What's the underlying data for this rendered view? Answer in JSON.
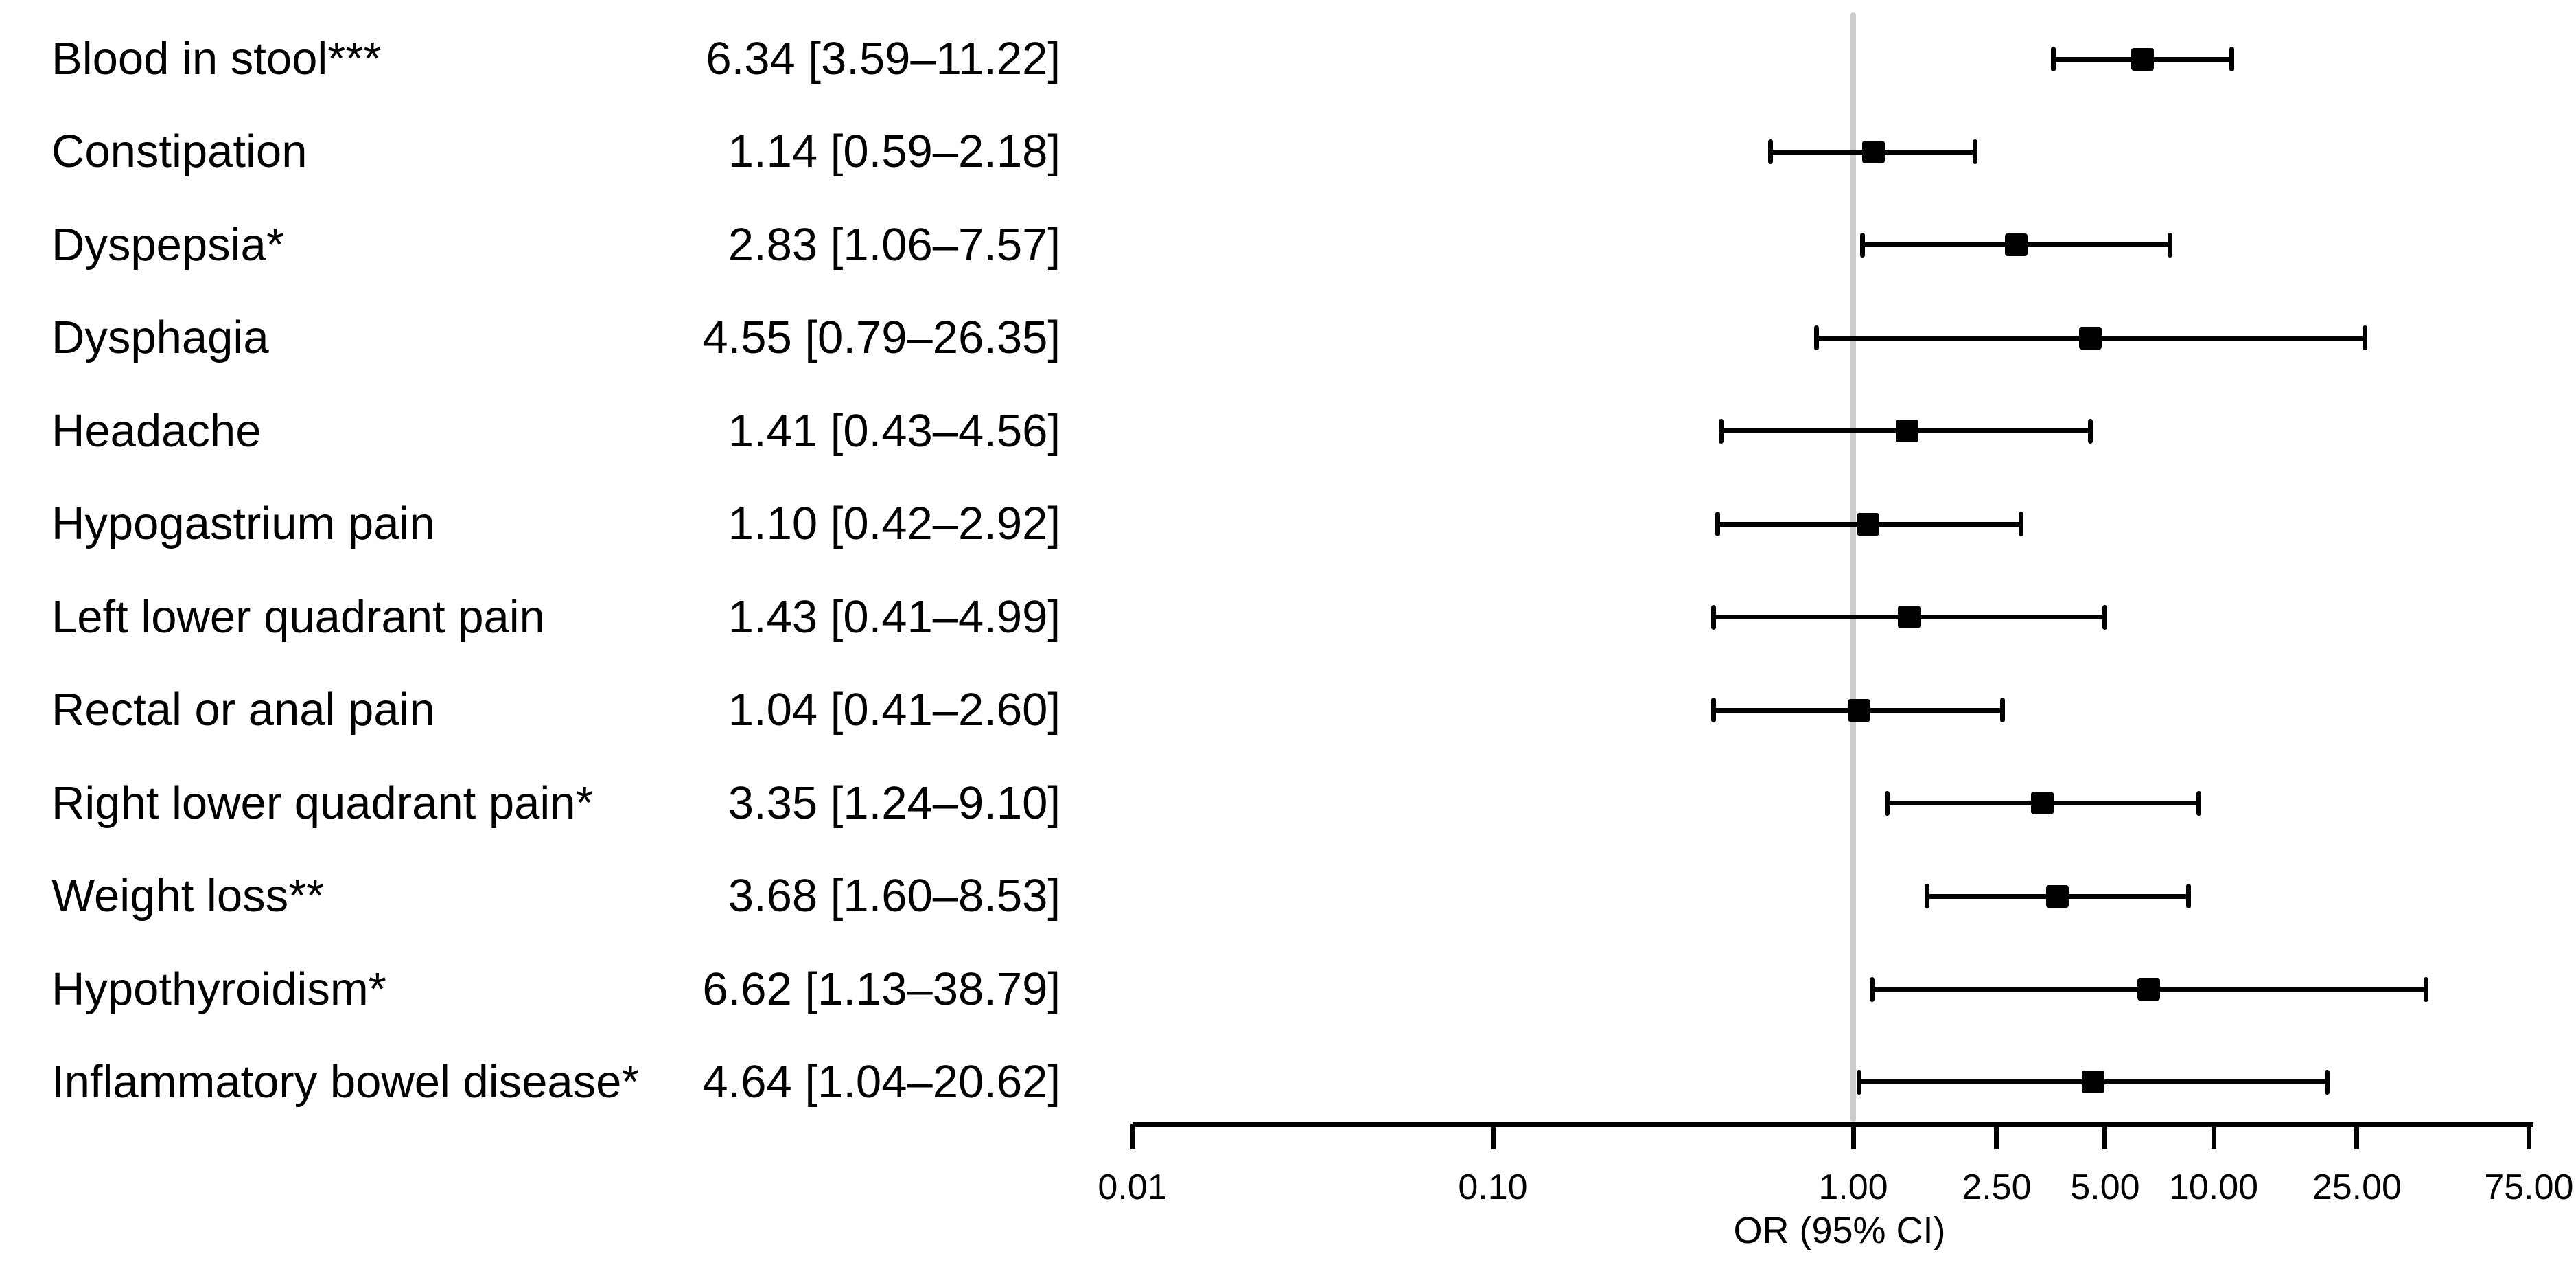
{
  "chart_data": {
    "type": "forest",
    "xlabel": "OR (95% CI)",
    "x_scale": "log10",
    "xlim": [
      0.01,
      75.0
    ],
    "reference_line": 1.0,
    "grid": false,
    "x_ticks": [
      0.01,
      0.1,
      1.0,
      2.5,
      5.0,
      10.0,
      25.0,
      75.0
    ],
    "x_tick_labels": [
      "0.01",
      "0.10",
      "1.00",
      "2.50",
      "5.00",
      "10.00",
      "25.00",
      "75.00"
    ],
    "rows": [
      {
        "label": "Blood in stool***",
        "estimate_text": "6.34 [3.59–11.22]",
        "or": 6.34,
        "ci_low": 3.59,
        "ci_high": 11.22
      },
      {
        "label": "Constipation",
        "estimate_text": "1.14 [0.59–2.18]",
        "or": 1.14,
        "ci_low": 0.59,
        "ci_high": 2.18
      },
      {
        "label": "Dyspepsia*",
        "estimate_text": "2.83 [1.06–7.57]",
        "or": 2.83,
        "ci_low": 1.06,
        "ci_high": 7.57
      },
      {
        "label": "Dysphagia",
        "estimate_text": "4.55 [0.79–26.35]",
        "or": 4.55,
        "ci_low": 0.79,
        "ci_high": 26.35
      },
      {
        "label": "Headache",
        "estimate_text": "1.41 [0.43–4.56]",
        "or": 1.41,
        "ci_low": 0.43,
        "ci_high": 4.56
      },
      {
        "label": "Hypogastrium pain",
        "estimate_text": "1.10 [0.42–2.92]",
        "or": 1.1,
        "ci_low": 0.42,
        "ci_high": 2.92
      },
      {
        "label": "Left lower quadrant pain",
        "estimate_text": "1.43 [0.41–4.99]",
        "or": 1.43,
        "ci_low": 0.41,
        "ci_high": 4.99
      },
      {
        "label": "Rectal or anal pain",
        "estimate_text": "1.04 [0.41–2.60]",
        "or": 1.04,
        "ci_low": 0.41,
        "ci_high": 2.6
      },
      {
        "label": "Right lower quadrant pain*",
        "estimate_text": "3.35 [1.24–9.10]",
        "or": 3.35,
        "ci_low": 1.24,
        "ci_high": 9.1
      },
      {
        "label": "Weight loss**",
        "estimate_text": "3.68 [1.60–8.53]",
        "or": 3.68,
        "ci_low": 1.6,
        "ci_high": 8.53
      },
      {
        "label": "Hypothyroidism*",
        "estimate_text": "6.62 [1.13–38.79]",
        "or": 6.62,
        "ci_low": 1.13,
        "ci_high": 38.79
      },
      {
        "label": "Inflammatory bowel disease*",
        "estimate_text": "4.64 [1.04–20.62]",
        "or": 4.64,
        "ci_low": 1.04,
        "ci_high": 20.62
      }
    ]
  },
  "colors": {
    "marker": "#000000",
    "ci_line": "#000000",
    "axis": "#000000",
    "text": "#000000",
    "reference_line": "#cccccc",
    "background": "#ffffff"
  }
}
